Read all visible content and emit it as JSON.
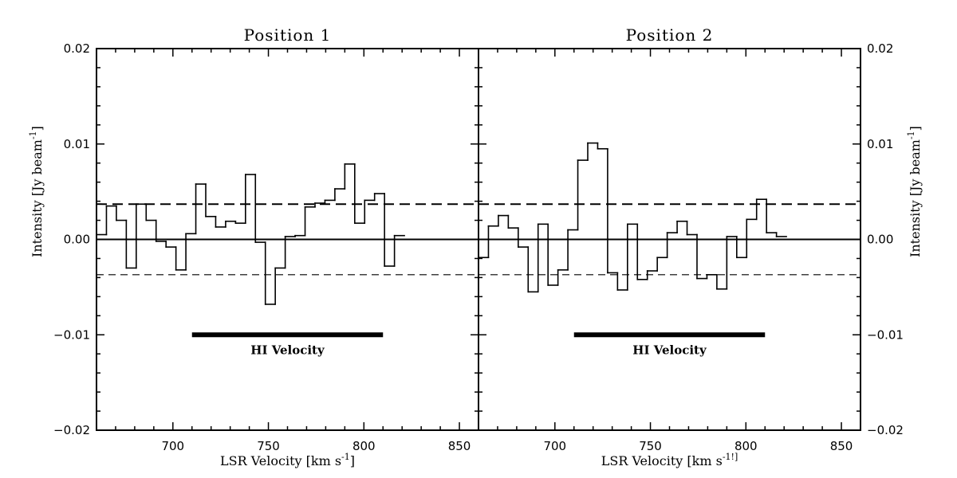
{
  "chart_data": [
    {
      "type": "line",
      "style": "step",
      "title": "Position 1",
      "xlabel": "LSR Velocity [km s",
      "xlabel_sup": "-1",
      "xlabel_end": "]",
      "ylabel": "Intensity [Jy beam",
      "ylabel_sup": "-1",
      "ylabel_end": "]",
      "xlim": [
        660,
        860
      ],
      "ylim": [
        -0.02,
        0.02
      ],
      "xticks": [
        700,
        750,
        800,
        850
      ],
      "yticks": [
        -0.02,
        -0.01,
        0.0,
        0.01,
        0.02
      ],
      "ytick_labels": [
        "−0.02",
        "−0.01",
        "0.00",
        "0.01",
        "0.02"
      ],
      "y_axis_side": "left",
      "channel_width": 5.2,
      "x_start": 660,
      "values": [
        0.0005,
        0.0035,
        0.002,
        -0.003,
        0.0037,
        0.002,
        -0.0002,
        -0.0008,
        -0.0032,
        0.0006,
        0.0058,
        0.0024,
        0.0013,
        0.0019,
        0.0017,
        0.0068,
        -0.0003,
        -0.0068,
        -0.003,
        0.0003,
        0.0004,
        0.0034,
        0.0038,
        0.0041,
        0.0053,
        0.0079,
        0.0017,
        0.0041,
        0.0048,
        -0.0028,
        0.0004
      ],
      "reference_lines": [
        {
          "y": 0.0,
          "style": "solid"
        },
        {
          "y": 0.0037,
          "style": "dashed-long"
        },
        {
          "y": -0.0037,
          "style": "dashed-short"
        }
      ],
      "annotation": {
        "text": "HI Velocity",
        "x_range": [
          710,
          810
        ],
        "y": -0.01
      }
    },
    {
      "type": "line",
      "style": "step",
      "title": "Position 2",
      "xlabel": "LSR Velocity [km s",
      "xlabel_sup": "-1!]",
      "xlabel_end": "",
      "ylabel": "Intensity [Jy beam",
      "ylabel_sup": "-1",
      "ylabel_end": "]",
      "xlim": [
        660,
        860
      ],
      "ylim": [
        -0.02,
        0.02
      ],
      "xticks": [
        700,
        750,
        800,
        850
      ],
      "yticks": [
        -0.02,
        -0.01,
        0.0,
        0.01,
        0.02
      ],
      "ytick_labels": [
        "−0.02",
        "−0.01",
        "0.00",
        "0.01",
        "0.02"
      ],
      "y_axis_side": "right",
      "channel_width": 5.2,
      "x_start": 660,
      "values": [
        -0.0019,
        0.0014,
        0.0025,
        0.0012,
        -0.0008,
        -0.0055,
        0.0016,
        -0.0048,
        -0.0032,
        0.001,
        0.0083,
        0.0101,
        0.0095,
        -0.0035,
        -0.0053,
        0.0016,
        -0.0042,
        -0.0033,
        -0.0019,
        0.0007,
        0.0019,
        0.0005,
        -0.0041,
        -0.0037,
        -0.0052,
        0.0003,
        -0.0019,
        0.0021,
        0.0042,
        0.0007,
        0.0003
      ],
      "reference_lines": [
        {
          "y": 0.0,
          "style": "solid"
        },
        {
          "y": 0.0037,
          "style": "dashed-long"
        },
        {
          "y": -0.0037,
          "style": "dashed-short"
        }
      ],
      "annotation": {
        "text": "HI Velocity",
        "x_range": [
          710,
          810
        ],
        "y": -0.01
      }
    }
  ]
}
